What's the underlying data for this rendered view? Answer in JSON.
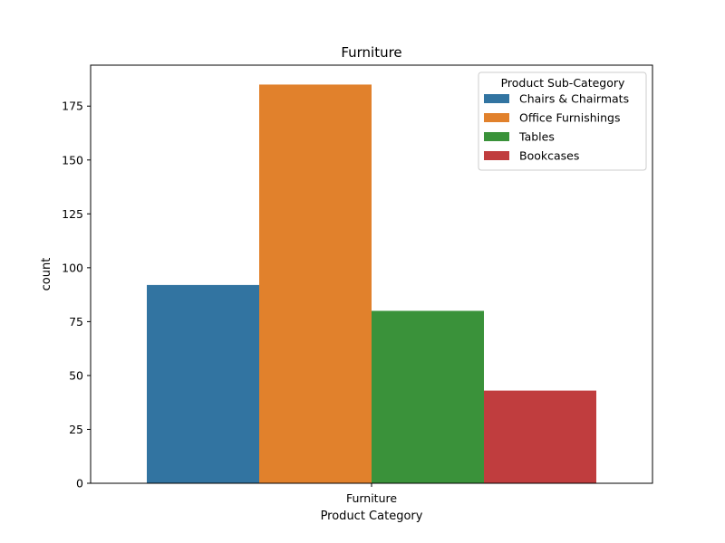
{
  "chart_data": {
    "type": "bar",
    "title": "Furniture",
    "xlabel": "Product Category",
    "ylabel": "count",
    "categories": [
      "Furniture"
    ],
    "ylim": [
      0,
      194
    ],
    "yticks": [
      0,
      25,
      50,
      75,
      100,
      125,
      150,
      175
    ],
    "grid": false,
    "legend": {
      "title": "Product Sub-Category",
      "placement": "top-right"
    },
    "series": [
      {
        "name": "Chairs & Chairmats",
        "values": [
          92
        ],
        "color": "#3274a1"
      },
      {
        "name": "Office Furnishings",
        "values": [
          185
        ],
        "color": "#e1812c"
      },
      {
        "name": "Tables",
        "values": [
          80
        ],
        "color": "#3a923a"
      },
      {
        "name": "Bookcases",
        "values": [
          43
        ],
        "color": "#c03d3e"
      }
    ]
  }
}
